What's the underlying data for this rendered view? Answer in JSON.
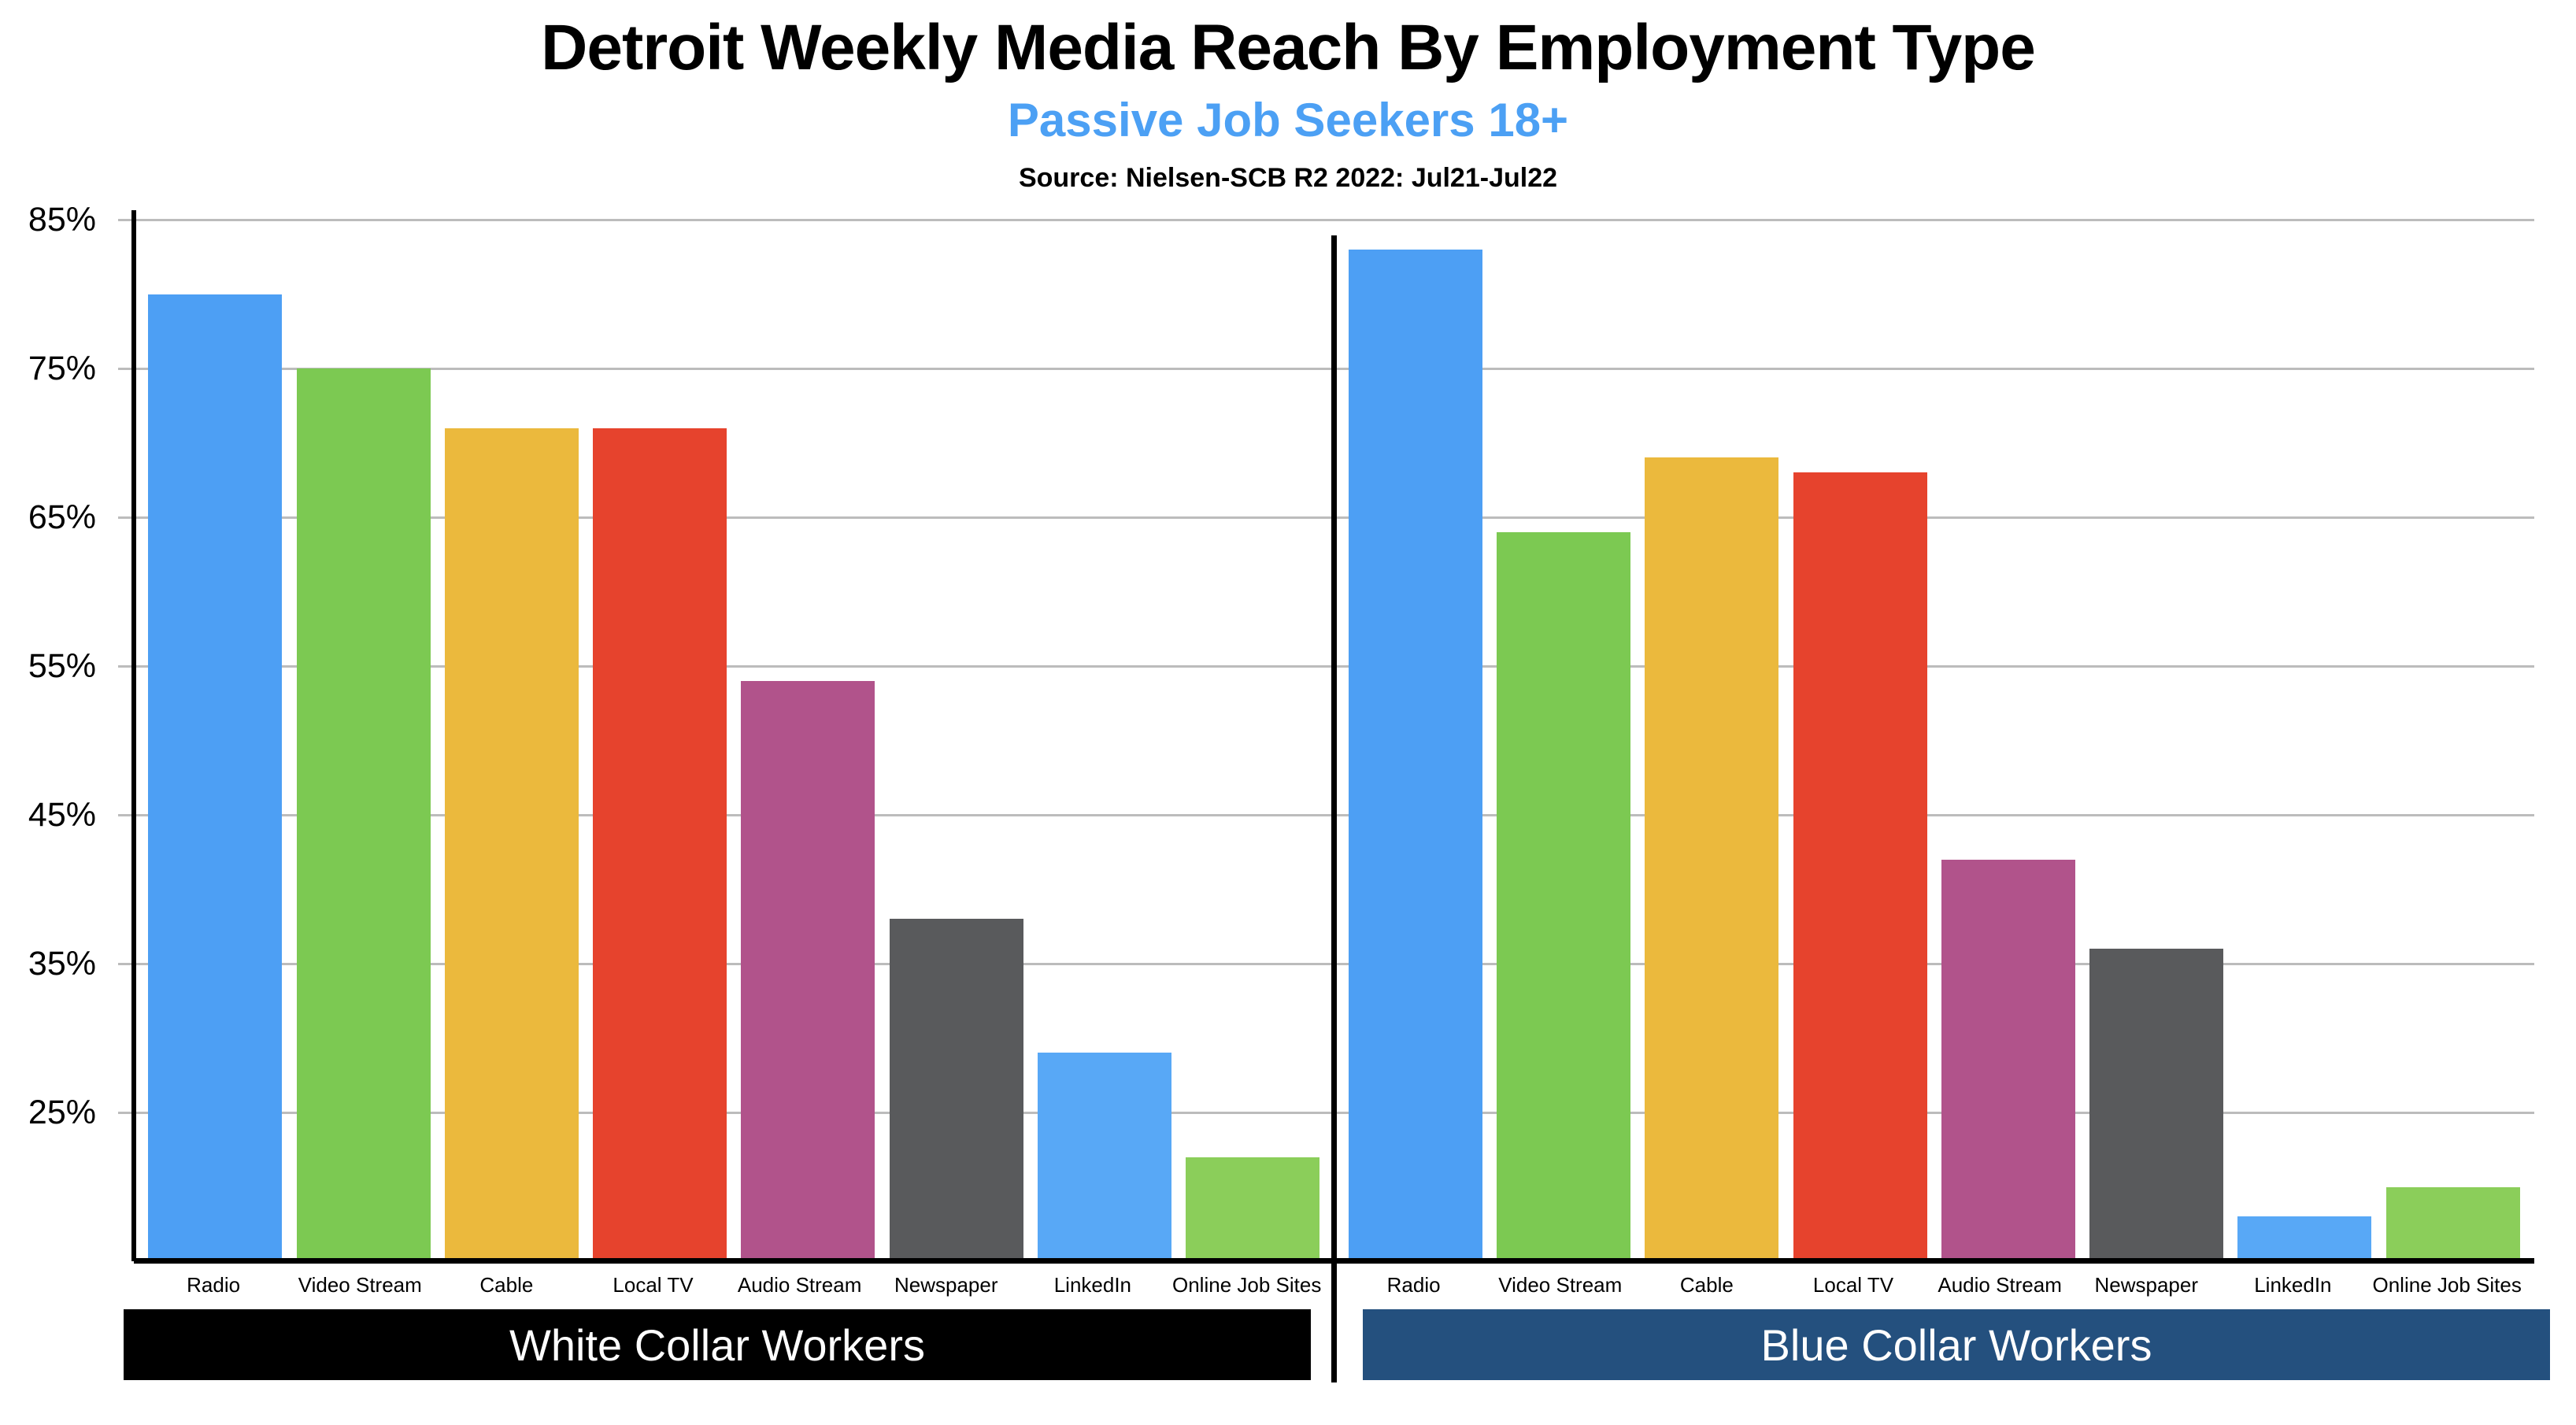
{
  "chart_data": {
    "type": "bar",
    "title": "Detroit Weekly Media Reach By Employment Type",
    "subtitle": "Passive Job Seekers 18+",
    "source": "Source: Nielsen-SCB R2 2022: Jul21-Jul22",
    "categories": [
      "Radio",
      "Video Stream",
      "Cable",
      "Local TV",
      "Audio Stream",
      "Newspaper",
      "LinkedIn",
      "Online Job Sites"
    ],
    "series": [
      {
        "name": "White Collar Workers",
        "values": [
          80,
          75,
          71,
          71,
          54,
          38,
          29,
          22
        ],
        "banner_color": "#000000"
      },
      {
        "name": "Blue Collar Workers",
        "values": [
          83,
          64,
          69,
          68,
          42,
          36,
          18,
          20
        ],
        "banner_color": "#24507E"
      }
    ],
    "bar_colors": [
      "#4D9FF4",
      "#7CC952",
      "#EBB93D",
      "#E6432D",
      "#B1538B",
      "#595A5C",
      "#58A8F6",
      "#8BCE5A"
    ],
    "y_ticks": [
      "85%",
      "75%",
      "65%",
      "55%",
      "45%",
      "35%",
      "25%"
    ],
    "ylim": [
      15,
      85
    ],
    "value_suffix": "%",
    "grid": true,
    "legend_position": "none"
  },
  "style": {
    "subtitle_color": "#4CA0F4",
    "gridline_color": "#BCBCBC",
    "axis_color": "#000000",
    "banner_text_color": "#FFFFFF"
  }
}
